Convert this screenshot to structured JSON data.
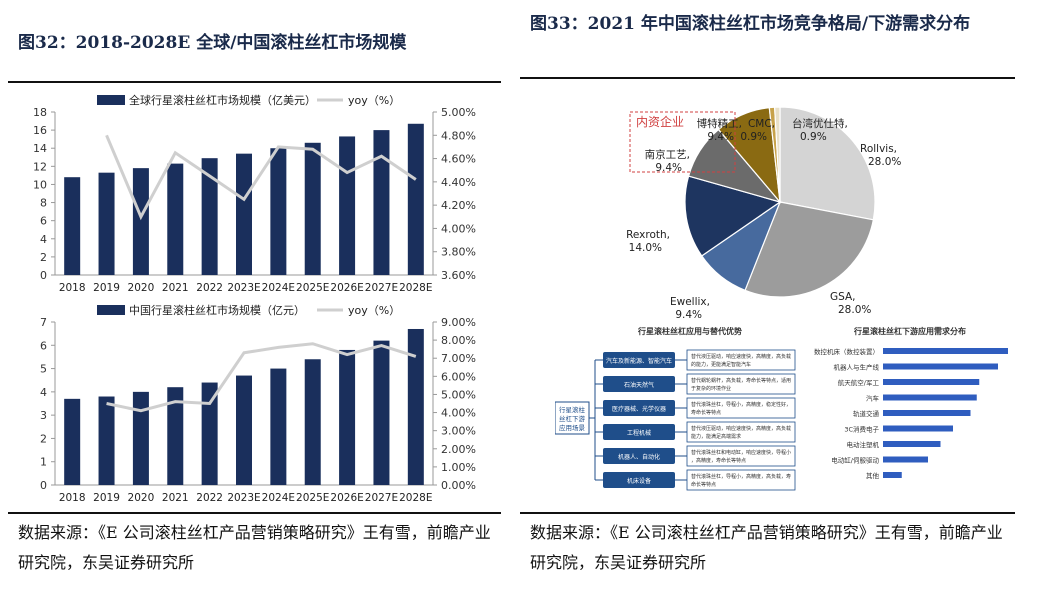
{
  "left": {
    "title": "图32：2018-2028E 全球/中国滚柱丝杠市场规模",
    "source": "数据来源：《E 公司滚柱丝杠产品营销策略研究》王有雪，前瞻产业研究院，东吴证券研究所"
  },
  "right": {
    "title": "图33：2021 年中国滚柱丝杠市场竞争格局/下游需求分布",
    "source": "数据来源：《E 公司滚柱丝杠产品营销策略研究》王有雪，前瞻产业研究院，东吴证券研究所"
  },
  "chart_data": [
    {
      "type": "bar+line",
      "categories": [
        "2018",
        "2019",
        "2020",
        "2021",
        "2022",
        "2023E",
        "2024E",
        "2025E",
        "2026E",
        "2027E",
        "2028E"
      ],
      "series": [
        {
          "name": "全球行星滚柱丝杠市场规模（亿美元）",
          "type": "bar",
          "values": [
            10.8,
            11.3,
            11.8,
            12.3,
            12.9,
            13.4,
            14.0,
            14.6,
            15.3,
            16.0,
            16.7
          ]
        },
        {
          "name": "yoy（%）",
          "type": "line",
          "values": [
            null,
            4.8,
            4.1,
            4.65,
            4.45,
            4.25,
            4.7,
            4.68,
            4.48,
            4.62,
            4.42
          ]
        }
      ],
      "ylim": [
        0,
        18
      ],
      "yticks": [
        0,
        2,
        4,
        6,
        8,
        10,
        12,
        14,
        16,
        18
      ],
      "y2lim": [
        3.6,
        5.0
      ],
      "y2ticks": [
        "3.60%",
        "3.80%",
        "4.00%",
        "4.20%",
        "4.40%",
        "4.60%",
        "4.80%",
        "5.00%"
      ],
      "legend": "top"
    },
    {
      "type": "bar+line",
      "categories": [
        "2018",
        "2019",
        "2020",
        "2021",
        "2022",
        "2023E",
        "2024E",
        "2025E",
        "2026E",
        "2027E",
        "2028E"
      ],
      "series": [
        {
          "name": "中国行星滚柱丝杠市场规模（亿元）",
          "type": "bar",
          "values": [
            3.7,
            3.8,
            4.0,
            4.2,
            4.4,
            4.7,
            5.0,
            5.4,
            5.8,
            6.2,
            6.7
          ]
        },
        {
          "name": "yoy（%）",
          "type": "line",
          "values": [
            null,
            4.5,
            4.1,
            4.6,
            4.5,
            7.3,
            7.6,
            7.8,
            7.2,
            7.7,
            7.1
          ]
        }
      ],
      "ylim": [
        0,
        7
      ],
      "yticks": [
        0,
        1,
        2,
        3,
        4,
        5,
        6,
        7
      ],
      "y2lim": [
        0,
        9
      ],
      "y2ticks": [
        "0.00%",
        "1.00%",
        "2.00%",
        "3.00%",
        "4.00%",
        "5.00%",
        "6.00%",
        "7.00%",
        "8.00%",
        "9.00%"
      ],
      "legend": "top"
    },
    {
      "type": "pie",
      "slices": [
        {
          "label": "Rollvis,",
          "value": 28.0,
          "value_label": "28.0%",
          "color": "#d4d4d4"
        },
        {
          "label": "GSA,",
          "value": 28.0,
          "value_label": "28.0%",
          "color": "#9c9c9c"
        },
        {
          "label": "Ewellix,",
          "value": 9.4,
          "value_label": "9.4%",
          "color": "#476a9e"
        },
        {
          "label": "Rexroth,",
          "value": 14.0,
          "value_label": "14.0%",
          "color": "#1e3560"
        },
        {
          "label": "南京工艺,",
          "value": 9.4,
          "value_label": "9.4%",
          "color": "#6b6b6b"
        },
        {
          "label": "博特精工,",
          "value": 9.4,
          "value_label": "9.4%",
          "color": "#8a6a12"
        },
        {
          "label": "CMC,",
          "value": 0.9,
          "value_label": "0.9%",
          "color": "#c7a24a"
        },
        {
          "label": "台湾优仕特,",
          "value": 0.9,
          "value_label": "0.9%",
          "color": "#e8e0c8"
        }
      ],
      "annotation": "内资企业"
    },
    {
      "type": "bar",
      "title": "行星滚柱丝杠下游应用需求分布",
      "categories": [
        "数控机床（数控装置）",
        "机器人与生产线",
        "航天航空/军工",
        "汽车",
        "轨道交通",
        "3C消费电子",
        "电动注塑机",
        "电动缸/伺服驱动",
        "其他"
      ],
      "values": [
        10.0,
        9.2,
        7.7,
        7.5,
        7.0,
        5.6,
        4.6,
        3.6,
        1.5
      ]
    }
  ],
  "diagram": {
    "title": "行星滚柱丝杠应用与替代优势",
    "root": "行星滚柱丝杠下游应用场景",
    "rows": [
      {
        "name": "汽车及新能源、智能汽车",
        "desc": "替代液压驱动，响应速度快，高精度，高负载的能力，更能满足智能汽车"
      },
      {
        "name": "石油天然气",
        "desc": "替代蜗轮蜗杆，高负载，寿命长等特点，适用于复杂的环境作业"
      },
      {
        "name": "医疗器械、光学仪器",
        "desc": "替代滚珠丝杠，导程小，高精度，稳定性好，寿命长等特点"
      },
      {
        "name": "工程机械",
        "desc": "替代液压驱动，响应速度快，高精度，高负载能力，能满足高端需求"
      },
      {
        "name": "机器人、自动化",
        "desc": "替代滚珠丝杠和电动缸，响应速度快，导程小，高精度，寿命长等特点"
      },
      {
        "name": "机床设备",
        "desc": "替代滚珠丝杠，导程小，高精度，高负载，寿命长等特点"
      }
    ]
  }
}
